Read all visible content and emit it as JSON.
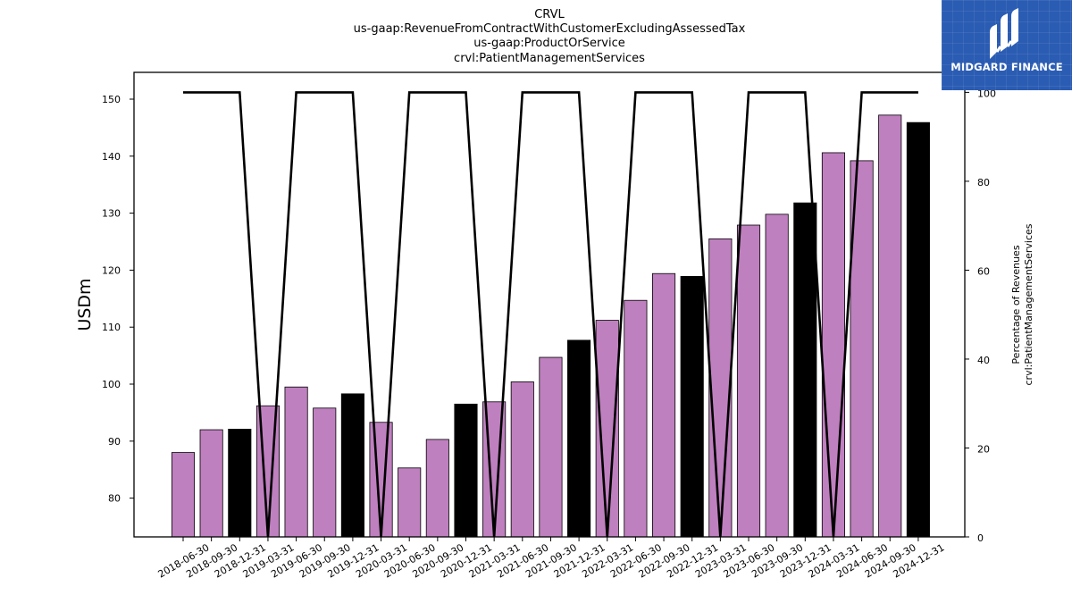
{
  "header": {
    "title_lines": [
      "CRVL",
      "us-gaap:RevenueFromContractWithCustomerExcludingAssessedTax",
      "us-gaap:ProductOrService",
      "crvl:PatientManagementServices"
    ]
  },
  "logo": {
    "text": "MIDGARD FINANCE",
    "background": "#2b5cb3"
  },
  "chart_data": {
    "type": "bar",
    "categories": [
      "2018-06-30",
      "2018-09-30",
      "2018-12-31",
      "2019-03-31",
      "2019-06-30",
      "2019-09-30",
      "2019-12-31",
      "2020-03-31",
      "2020-06-30",
      "2020-09-30",
      "2020-12-31",
      "2021-03-31",
      "2021-06-30",
      "2021-09-30",
      "2021-12-31",
      "2022-03-31",
      "2022-06-30",
      "2022-09-30",
      "2022-12-31",
      "2023-03-31",
      "2023-06-30",
      "2023-09-30",
      "2023-12-31",
      "2024-03-31",
      "2024-06-30",
      "2024-09-30",
      "2024-12-31"
    ],
    "series": [
      {
        "axis": "left",
        "type": "bar",
        "values": [
          88.0,
          92.0,
          92.1,
          96.2,
          99.5,
          95.8,
          98.3,
          93.3,
          85.3,
          90.3,
          96.5,
          96.9,
          100.4,
          104.7,
          107.7,
          111.2,
          114.7,
          119.4,
          118.9,
          125.5,
          127.9,
          129.8,
          131.8,
          140.6,
          139.2,
          147.2,
          145.9
        ],
        "colors": [
          "#bf80bf",
          "#bf80bf",
          "#000000",
          "#bf80bf",
          "#bf80bf",
          "#bf80bf",
          "#000000",
          "#bf80bf",
          "#bf80bf",
          "#bf80bf",
          "#000000",
          "#bf80bf",
          "#bf80bf",
          "#bf80bf",
          "#000000",
          "#bf80bf",
          "#bf80bf",
          "#bf80bf",
          "#000000",
          "#bf80bf",
          "#bf80bf",
          "#bf80bf",
          "#000000",
          "#bf80bf",
          "#bf80bf",
          "#bf80bf",
          "#000000"
        ]
      },
      {
        "axis": "right",
        "type": "line",
        "color": "#000000",
        "values": [
          100,
          100,
          100,
          0,
          100,
          100,
          100,
          0,
          100,
          100,
          100,
          0,
          100,
          100,
          100,
          0,
          100,
          100,
          100,
          0,
          100,
          100,
          100,
          0,
          100,
          100,
          100
        ]
      }
    ],
    "ylabel": "USDm",
    "ylim": [
      73.2,
      154.7
    ],
    "yticks": [
      80,
      90,
      100,
      110,
      120,
      130,
      140,
      150
    ],
    "y2label_lines": [
      "Percentage of Revenues",
      "crvl:PatientManagementServices"
    ],
    "y2lim": [
      0,
      104.5
    ],
    "y2ticks": [
      0,
      20,
      40,
      60,
      80,
      100
    ],
    "grid": false,
    "bar_edge_color": "#000000"
  }
}
